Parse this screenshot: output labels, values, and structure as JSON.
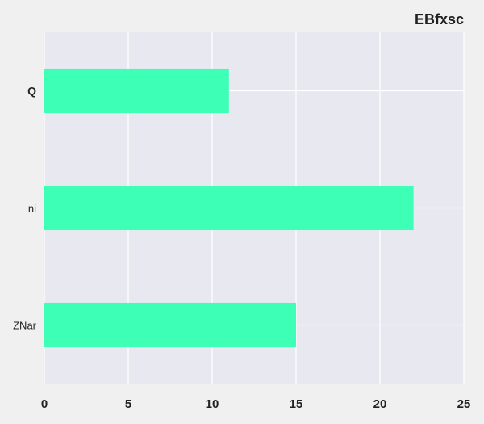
{
  "chart_data": {
    "type": "bar",
    "orientation": "horizontal",
    "title": "EBfxsc",
    "categories": [
      "Q",
      "ni",
      "ZNar"
    ],
    "category_bold": [
      true,
      false,
      false
    ],
    "values": [
      11,
      22,
      15
    ],
    "xlim": [
      0,
      25
    ],
    "xticks": [
      "0",
      "5",
      "10",
      "15",
      "20",
      "25"
    ],
    "xlabel": "",
    "ylabel": "",
    "grid": true,
    "colors": {
      "bar": "#3dffb6",
      "plot_bg": "#e8e8f0",
      "page_bg": "#f0f0f0",
      "grid": "#ffffff",
      "text": "#222222"
    }
  }
}
